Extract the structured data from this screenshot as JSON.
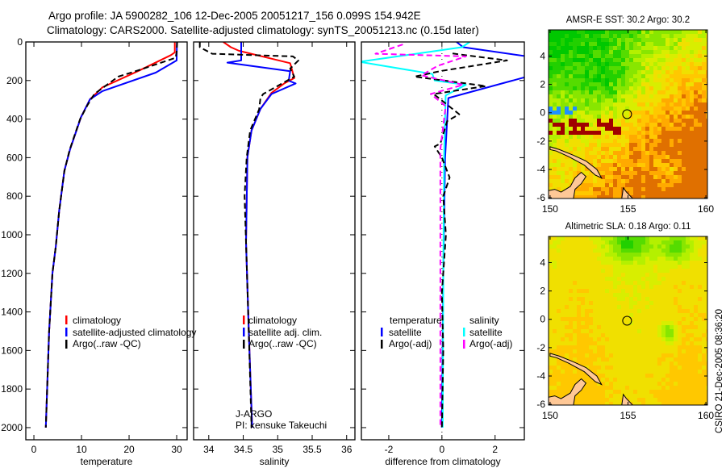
{
  "header": {
    "line1": "Argo profile: JA 5900282_106 12-Dec-2005 20051217_156 0.099S 154.942E",
    "line2": "Climatology: CARS2000. Satellite-adjusted climatology: synTS_20051213.nc (0.15d later)"
  },
  "footer": {
    "stamp": "CSIRO 21-Dec-2005 08:36:20"
  },
  "colors": {
    "climatology": "#ff0000",
    "satellite": "#0000ff",
    "argo": "#000000",
    "sal_satellite": "#00ffff",
    "sal_argo": "#ff00ff"
  },
  "chart_data": [
    {
      "type": "line",
      "id": "temperature",
      "xlabel": "temperature",
      "ylabel": "",
      "xlim": [
        -1.7,
        32.2
      ],
      "ylim": [
        2063,
        0
      ],
      "xticks": [
        0,
        10,
        20,
        30
      ],
      "yticks": [
        0,
        200,
        400,
        600,
        800,
        1000,
        1200,
        1400,
        1600,
        1800,
        2000
      ],
      "legend": {
        "placement": "lower-middle",
        "entries": [
          "climatology",
          "satellite-adjusted climatology",
          "Argo(..raw -QC)"
        ]
      },
      "series": [
        {
          "name": "climatology",
          "color": "#ff0000",
          "dash": false,
          "depth": [
            0,
            54,
            68,
            150,
            235,
            297,
            390,
            556,
            668,
            878,
            1059,
            1200,
            1500,
            2000
          ],
          "values": [
            29.6,
            29.6,
            28.8,
            22.0,
            14.4,
            11.8,
            9.9,
            7.6,
            6.4,
            5.3,
            4.6,
            3.9,
            3.2,
            2.5
          ]
        },
        {
          "name": "satellite-adjusted climatology",
          "color": "#0000ff",
          "dash": false,
          "depth": [
            0,
            96,
            159,
            255,
            297,
            390,
            556,
            668,
            878,
            1059,
            1200,
            1500,
            2000
          ],
          "values": [
            30.05,
            30.0,
            25.6,
            14.4,
            11.8,
            9.9,
            7.6,
            6.4,
            5.3,
            4.6,
            3.9,
            3.2,
            2.5
          ]
        },
        {
          "name": "Argo(..raw -QC)",
          "color": "#000000",
          "dash": true,
          "depth": [
            0,
            50,
            82,
            149,
            180,
            270,
            330,
            400,
            560,
            670,
            880,
            1060,
            1200,
            1500,
            2000
          ],
          "values": [
            30.1,
            30.0,
            29.8,
            21.7,
            17.7,
            12.7,
            11.2,
            9.7,
            7.5,
            6.4,
            5.3,
            4.6,
            3.9,
            3.2,
            2.5
          ]
        }
      ]
    },
    {
      "type": "line",
      "id": "salinity",
      "xlabel": "salinity",
      "ylabel": "",
      "xlim": [
        33.78,
        36.12
      ],
      "ylim": [
        2063,
        0
      ],
      "xticks": [
        34,
        34.5,
        35,
        35.5,
        36
      ],
      "yticks": [
        0,
        200,
        400,
        600,
        800,
        1000,
        1200,
        1400,
        1600,
        1800,
        2000
      ],
      "legend": {
        "placement": "lower-right",
        "entries": [
          "climatology",
          "satellite adj. clim.",
          "Argo(..raw -QC)"
        ]
      },
      "annotation": [
        "J-ARGO",
        "PI: kensuke Takeuchi"
      ],
      "series": [
        {
          "name": "climatology",
          "color": "#ff0000",
          "dash": false,
          "depth": [
            0,
            27,
            46,
            110,
            187,
            214,
            264,
            347,
            459,
            598,
            1038,
            1500,
            2000
          ],
          "values": [
            34.21,
            34.32,
            34.44,
            35.18,
            35.24,
            35.1,
            34.91,
            34.75,
            34.62,
            34.56,
            34.54,
            34.58,
            34.63
          ]
        },
        {
          "name": "satellite adj. clim.",
          "color": "#0000ff",
          "dash": false,
          "depth": [
            0,
            96,
            107,
            152,
            201,
            215,
            270,
            347,
            459,
            598,
            1038,
            1500,
            2000
          ],
          "values": [
            34.47,
            34.47,
            34.27,
            35.18,
            35.16,
            35.26,
            34.91,
            34.75,
            34.62,
            34.56,
            34.54,
            34.58,
            34.63
          ]
        },
        {
          "name": "Argo(..raw -QC)",
          "color": "#000000",
          "dash": true,
          "depth": [
            0,
            27,
            61,
            75,
            96,
            138,
            180,
            270,
            290,
            350,
            460,
            600,
            800,
            1040,
            1500,
            2000
          ],
          "values": [
            33.87,
            33.87,
            34.05,
            35.22,
            35.3,
            35.18,
            35.24,
            34.79,
            34.75,
            34.73,
            34.6,
            34.55,
            34.52,
            34.54,
            34.58,
            34.62
          ]
        }
      ]
    },
    {
      "type": "line",
      "id": "difference",
      "xlabel": "difference from climatology",
      "ylabel": "",
      "xlim": [
        -3.03,
        3.1
      ],
      "ylim": [
        2063,
        0
      ],
      "xticks": [
        -2,
        0,
        2
      ],
      "yticks": [
        0,
        200,
        400,
        600,
        800,
        1000,
        1200,
        1400,
        1600,
        1800,
        2000
      ],
      "legend": {
        "placement": "lower-middle",
        "groups": [
          {
            "heading": "temperature",
            "entries": [
              "satellite",
              "Argo(-adj)"
            ]
          },
          {
            "heading": "salinity",
            "entries": [
              "satellite",
              "Argo(-adj)"
            ]
          }
        ]
      },
      "series": [
        {
          "name": "temperature satellite",
          "color": "#0000ff",
          "dash": false,
          "depth": [
            0,
            27,
            75,
            180,
            291,
            600,
            1200,
            2000
          ],
          "values": [
            0.55,
            0.8,
            3.2,
            3.2,
            0.24,
            0.12,
            0.05,
            0.0
          ]
        },
        {
          "name": "salinity satellite",
          "color": "#00ffff",
          "dash": false,
          "depth": [
            0,
            27,
            103,
            166,
            200,
            222,
            277,
            600,
            1200,
            2000
          ],
          "values": [
            1.05,
            0.75,
            -3.1,
            -0.36,
            -0.27,
            0.9,
            0.14,
            0.08,
            0.05,
            0.03
          ]
        },
        {
          "name": "temperature Argo(-adj)",
          "color": "#000000",
          "dash": true,
          "depth": [
            60,
            96,
            151,
            180,
            229,
            270,
            375,
            410,
            527,
            542,
            600,
            703,
            800,
            1000,
            1300,
            1600,
            2000
          ],
          "values": [
            0.4,
            2.45,
            -0.06,
            -1.03,
            1.66,
            -0.31,
            0.65,
            0.2,
            -0.06,
            -0.27,
            0.0,
            0.29,
            0.05,
            0.15,
            0.0,
            0.05,
            0.0
          ]
        },
        {
          "name": "salinity Argo(-adj)",
          "color": "#ff00ff",
          "dash": true,
          "depth": [
            13,
            61,
            75,
            124,
            173,
            222,
            270,
            333,
            556,
            1000,
            2000
          ],
          "values": [
            -1.47,
            -2.5,
            0.9,
            -0.16,
            -0.77,
            0.8,
            -0.42,
            0.14,
            -0.06,
            -0.06,
            -0.06
          ]
        }
      ]
    }
  ],
  "maps": [
    {
      "id": "sst",
      "title": "AMSR-E SST: 30.2 Argo: 30.2",
      "lon_ticks": [
        150,
        155,
        160
      ],
      "lat_ticks": [
        4,
        2,
        0,
        -2,
        -4,
        -6
      ],
      "lon_range": [
        149.9,
        160.1
      ],
      "lat_range": [
        -6.05,
        5.85
      ],
      "argo_position": {
        "lat": -0.099,
        "lon": 154.942
      }
    },
    {
      "id": "sla",
      "title": "Altimetric SLA: 0.18 Argo: 0.11",
      "lon_ticks": [
        150,
        155,
        160
      ],
      "lat_ticks": [
        4,
        2,
        0,
        -2,
        -4,
        -6
      ],
      "lon_range": [
        149.9,
        160.1
      ],
      "lat_range": [
        -6.05,
        5.85
      ],
      "argo_position": {
        "lat": -0.099,
        "lon": 154.942
      }
    }
  ]
}
